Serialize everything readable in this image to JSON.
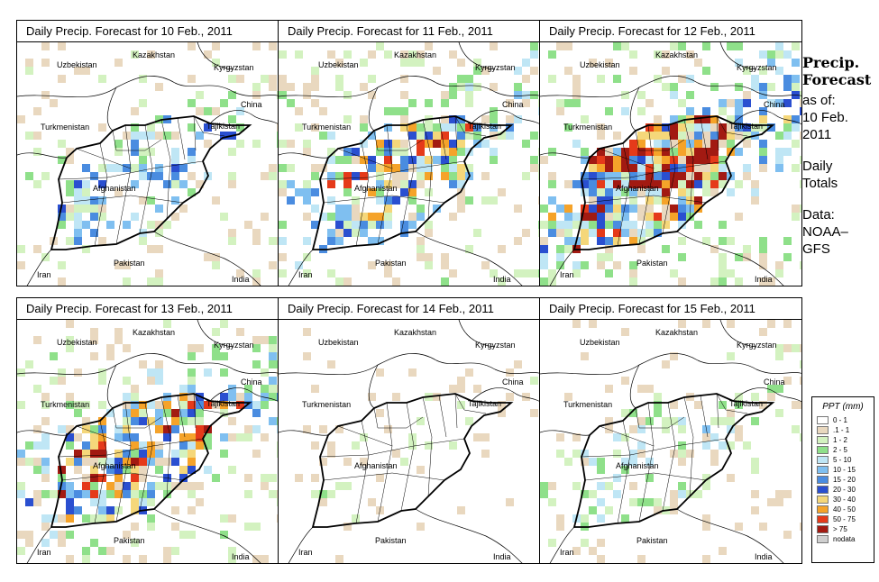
{
  "panels": [
    {
      "title": "Daily Precip. Forecast for  10 Feb., 2011",
      "seed": 11,
      "intensity": 0.55
    },
    {
      "title": "Daily Precip. Forecast for  11 Feb., 2011",
      "seed": 23,
      "intensity": 0.85
    },
    {
      "title": "Daily Precip. Forecast for  12 Feb., 2011",
      "seed": 37,
      "intensity": 1.15
    },
    {
      "title": "Daily Precip. Forecast for  13 Feb., 2011",
      "seed": 41,
      "intensity": 0.9
    },
    {
      "title": "Daily Precip. Forecast for  14 Feb., 2011",
      "seed": 53,
      "intensity": 0.18
    },
    {
      "title": "Daily Precip. Forecast for  15 Feb., 2011",
      "seed": 67,
      "intensity": 0.35
    }
  ],
  "countries": [
    "Kazakhstan",
    "Uzbekistan",
    "Kyrgyzstan",
    "China",
    "Turkmenistan",
    "Tajikistan",
    "Afghanistan",
    "Iran",
    "Pakistan",
    "India"
  ],
  "sidebar": {
    "title_line1": "Precip.",
    "title_line2": "Forecast",
    "asof": "as of:",
    "date1": "10 Feb.",
    "date2": "2011",
    "totals1": "Daily",
    "totals2": "Totals",
    "data1": "Data:",
    "data2": "NOAA–",
    "data3": "GFS"
  },
  "legend": {
    "title": "PPT (mm)",
    "items": [
      {
        "label": "0 - 1",
        "color": "#ffffff"
      },
      {
        "label": ".1 - 1",
        "color": "#e9d8bf"
      },
      {
        "label": "1 - 2",
        "color": "#d3f2c0"
      },
      {
        "label": "2 - 5",
        "color": "#8fe08a"
      },
      {
        "label": "5 - 10",
        "color": "#bfe6f5"
      },
      {
        "label": "10 - 15",
        "color": "#7fbff0"
      },
      {
        "label": "15 - 20",
        "color": "#4a8ce0"
      },
      {
        "label": "20 - 30",
        "color": "#2a4fd0"
      },
      {
        "label": "30 - 40",
        "color": "#f5d77a"
      },
      {
        "label": "40 - 50",
        "color": "#f5a32a"
      },
      {
        "label": "50 - 75",
        "color": "#e53a1a"
      },
      {
        "label": "> 75",
        "color": "#a21a12"
      },
      {
        "label": "nodata",
        "color": "#cfcfcf"
      }
    ]
  }
}
